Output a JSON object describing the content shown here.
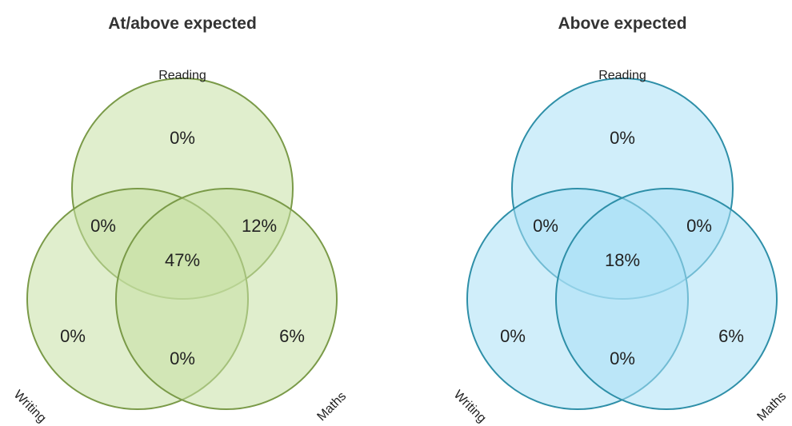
{
  "colors": {
    "green_fill": "#c7e0a4",
    "green_stroke": "#7a9a48",
    "blue_fill": "#a9e0f5",
    "blue_stroke": "#2e8fa8"
  },
  "diagrams": [
    {
      "title": "At/above expected",
      "theme": "green",
      "sets": {
        "top": "Reading",
        "left": "Writing",
        "right": "Maths"
      },
      "values": {
        "top_only": "0%",
        "top_left": "0%",
        "top_right": "12%",
        "center": "47%",
        "left_only": "0%",
        "right_only": "6%",
        "left_right": "0%"
      }
    },
    {
      "title": "Above expected",
      "theme": "blue",
      "sets": {
        "top": "Reading",
        "left": "Writing",
        "right": "Maths"
      },
      "values": {
        "top_only": "0%",
        "top_left": "0%",
        "top_right": "0%",
        "center": "18%",
        "left_only": "0%",
        "right_only": "6%",
        "left_right": "0%"
      }
    }
  ]
}
